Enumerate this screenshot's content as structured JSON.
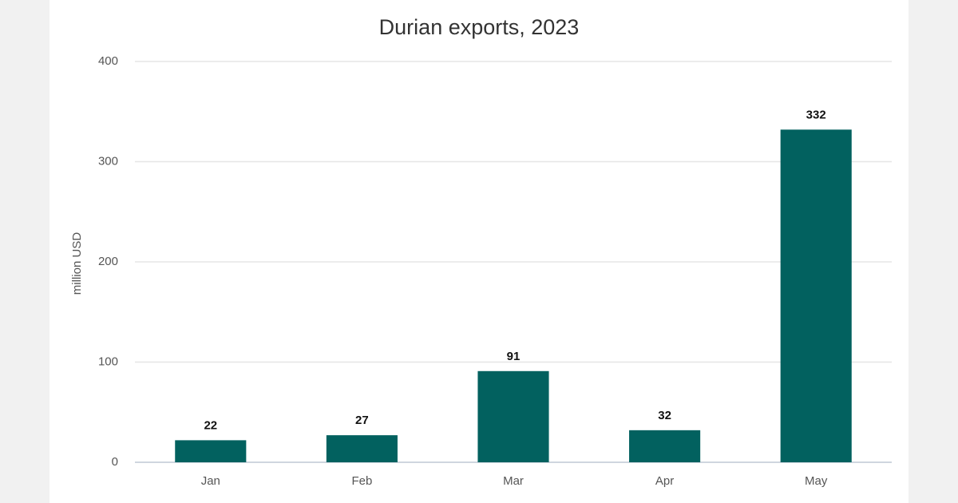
{
  "chart_data": {
    "type": "bar",
    "title": "Durian exports, 2023",
    "y_label": "million USD",
    "categories": [
      "Jan",
      "Feb",
      "Mar",
      "Apr",
      "May"
    ],
    "values": [
      22,
      27,
      91,
      32,
      332
    ],
    "color": "#02615f",
    "ylim": [
      0,
      400
    ],
    "yticks": [
      0,
      100,
      200,
      300,
      400
    ],
    "grid": true
  }
}
